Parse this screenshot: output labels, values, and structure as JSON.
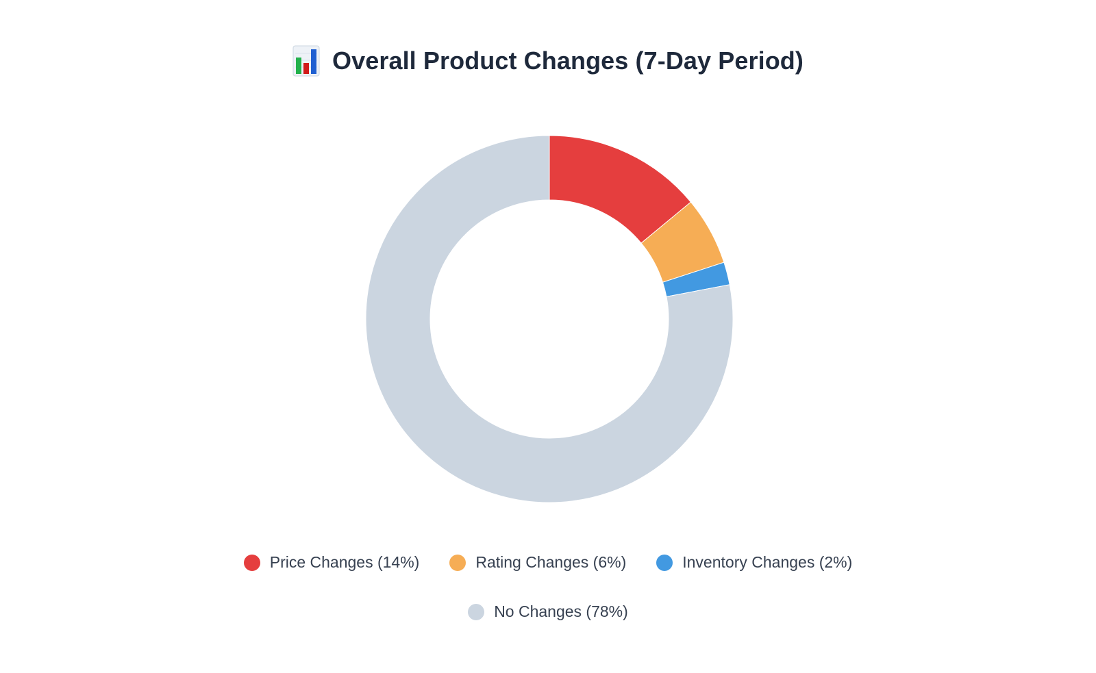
{
  "chart_data": {
    "type": "pie",
    "variant": "donut",
    "title": "Overall Product Changes (7-Day Period)",
    "title_icon": "bar-chart-emoji-icon",
    "unit": "%",
    "slices": [
      {
        "label": "Price Changes (14%)",
        "value": 14,
        "color": "#e53e3e"
      },
      {
        "label": "Rating Changes (6%)",
        "value": 6,
        "color": "#f6ad55"
      },
      {
        "label": "Inventory Changes (2%)",
        "value": 2,
        "color": "#4299e1"
      },
      {
        "label": "No Changes (78%)",
        "value": 78,
        "color": "#cbd5e0"
      }
    ],
    "legend_position": "bottom"
  }
}
